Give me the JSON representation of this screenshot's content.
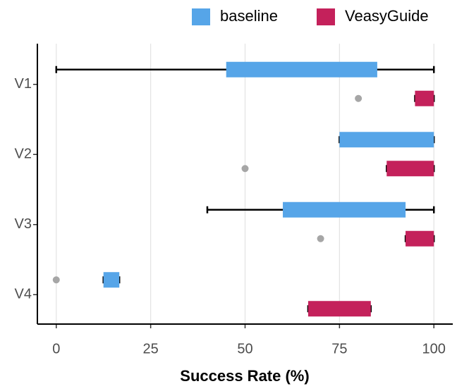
{
  "chart_data": {
    "type": "boxplot",
    "x_label": "Success Rate (%)",
    "categories": [
      "V1",
      "V2",
      "V3",
      "V4"
    ],
    "xlim": [
      -5,
      105
    ],
    "xticks": [
      0,
      25,
      50,
      75,
      100
    ],
    "grid": true,
    "legend": "top",
    "series": [
      {
        "name": "baseline",
        "color": "#56a5e8",
        "boxes": [
          {
            "low": 0,
            "q1": 45,
            "q3": 85,
            "high": 100,
            "outliers": []
          },
          {
            "low": 75,
            "q1": 75,
            "q3": 100,
            "high": 100,
            "outliers": []
          },
          {
            "low": 40,
            "q1": 60,
            "q3": 92.5,
            "high": 100,
            "outliers": []
          },
          {
            "low": 12.5,
            "q1": 12.5,
            "q3": 16.7,
            "high": 16.7,
            "outliers": [
              0
            ]
          }
        ]
      },
      {
        "name": "VeasyGuide",
        "color": "#c4215b",
        "boxes": [
          {
            "low": 95,
            "q1": 95,
            "q3": 100,
            "high": 100,
            "outliers": [
              80
            ]
          },
          {
            "low": 87.5,
            "q1": 87.5,
            "q3": 100,
            "high": 100,
            "outliers": [
              50
            ]
          },
          {
            "low": 92.5,
            "q1": 92.5,
            "q3": 100,
            "high": 100,
            "outliers": [
              70
            ]
          },
          {
            "low": 66.7,
            "q1": 66.7,
            "q3": 83.3,
            "high": 83.3,
            "outliers": []
          }
        ]
      }
    ]
  }
}
